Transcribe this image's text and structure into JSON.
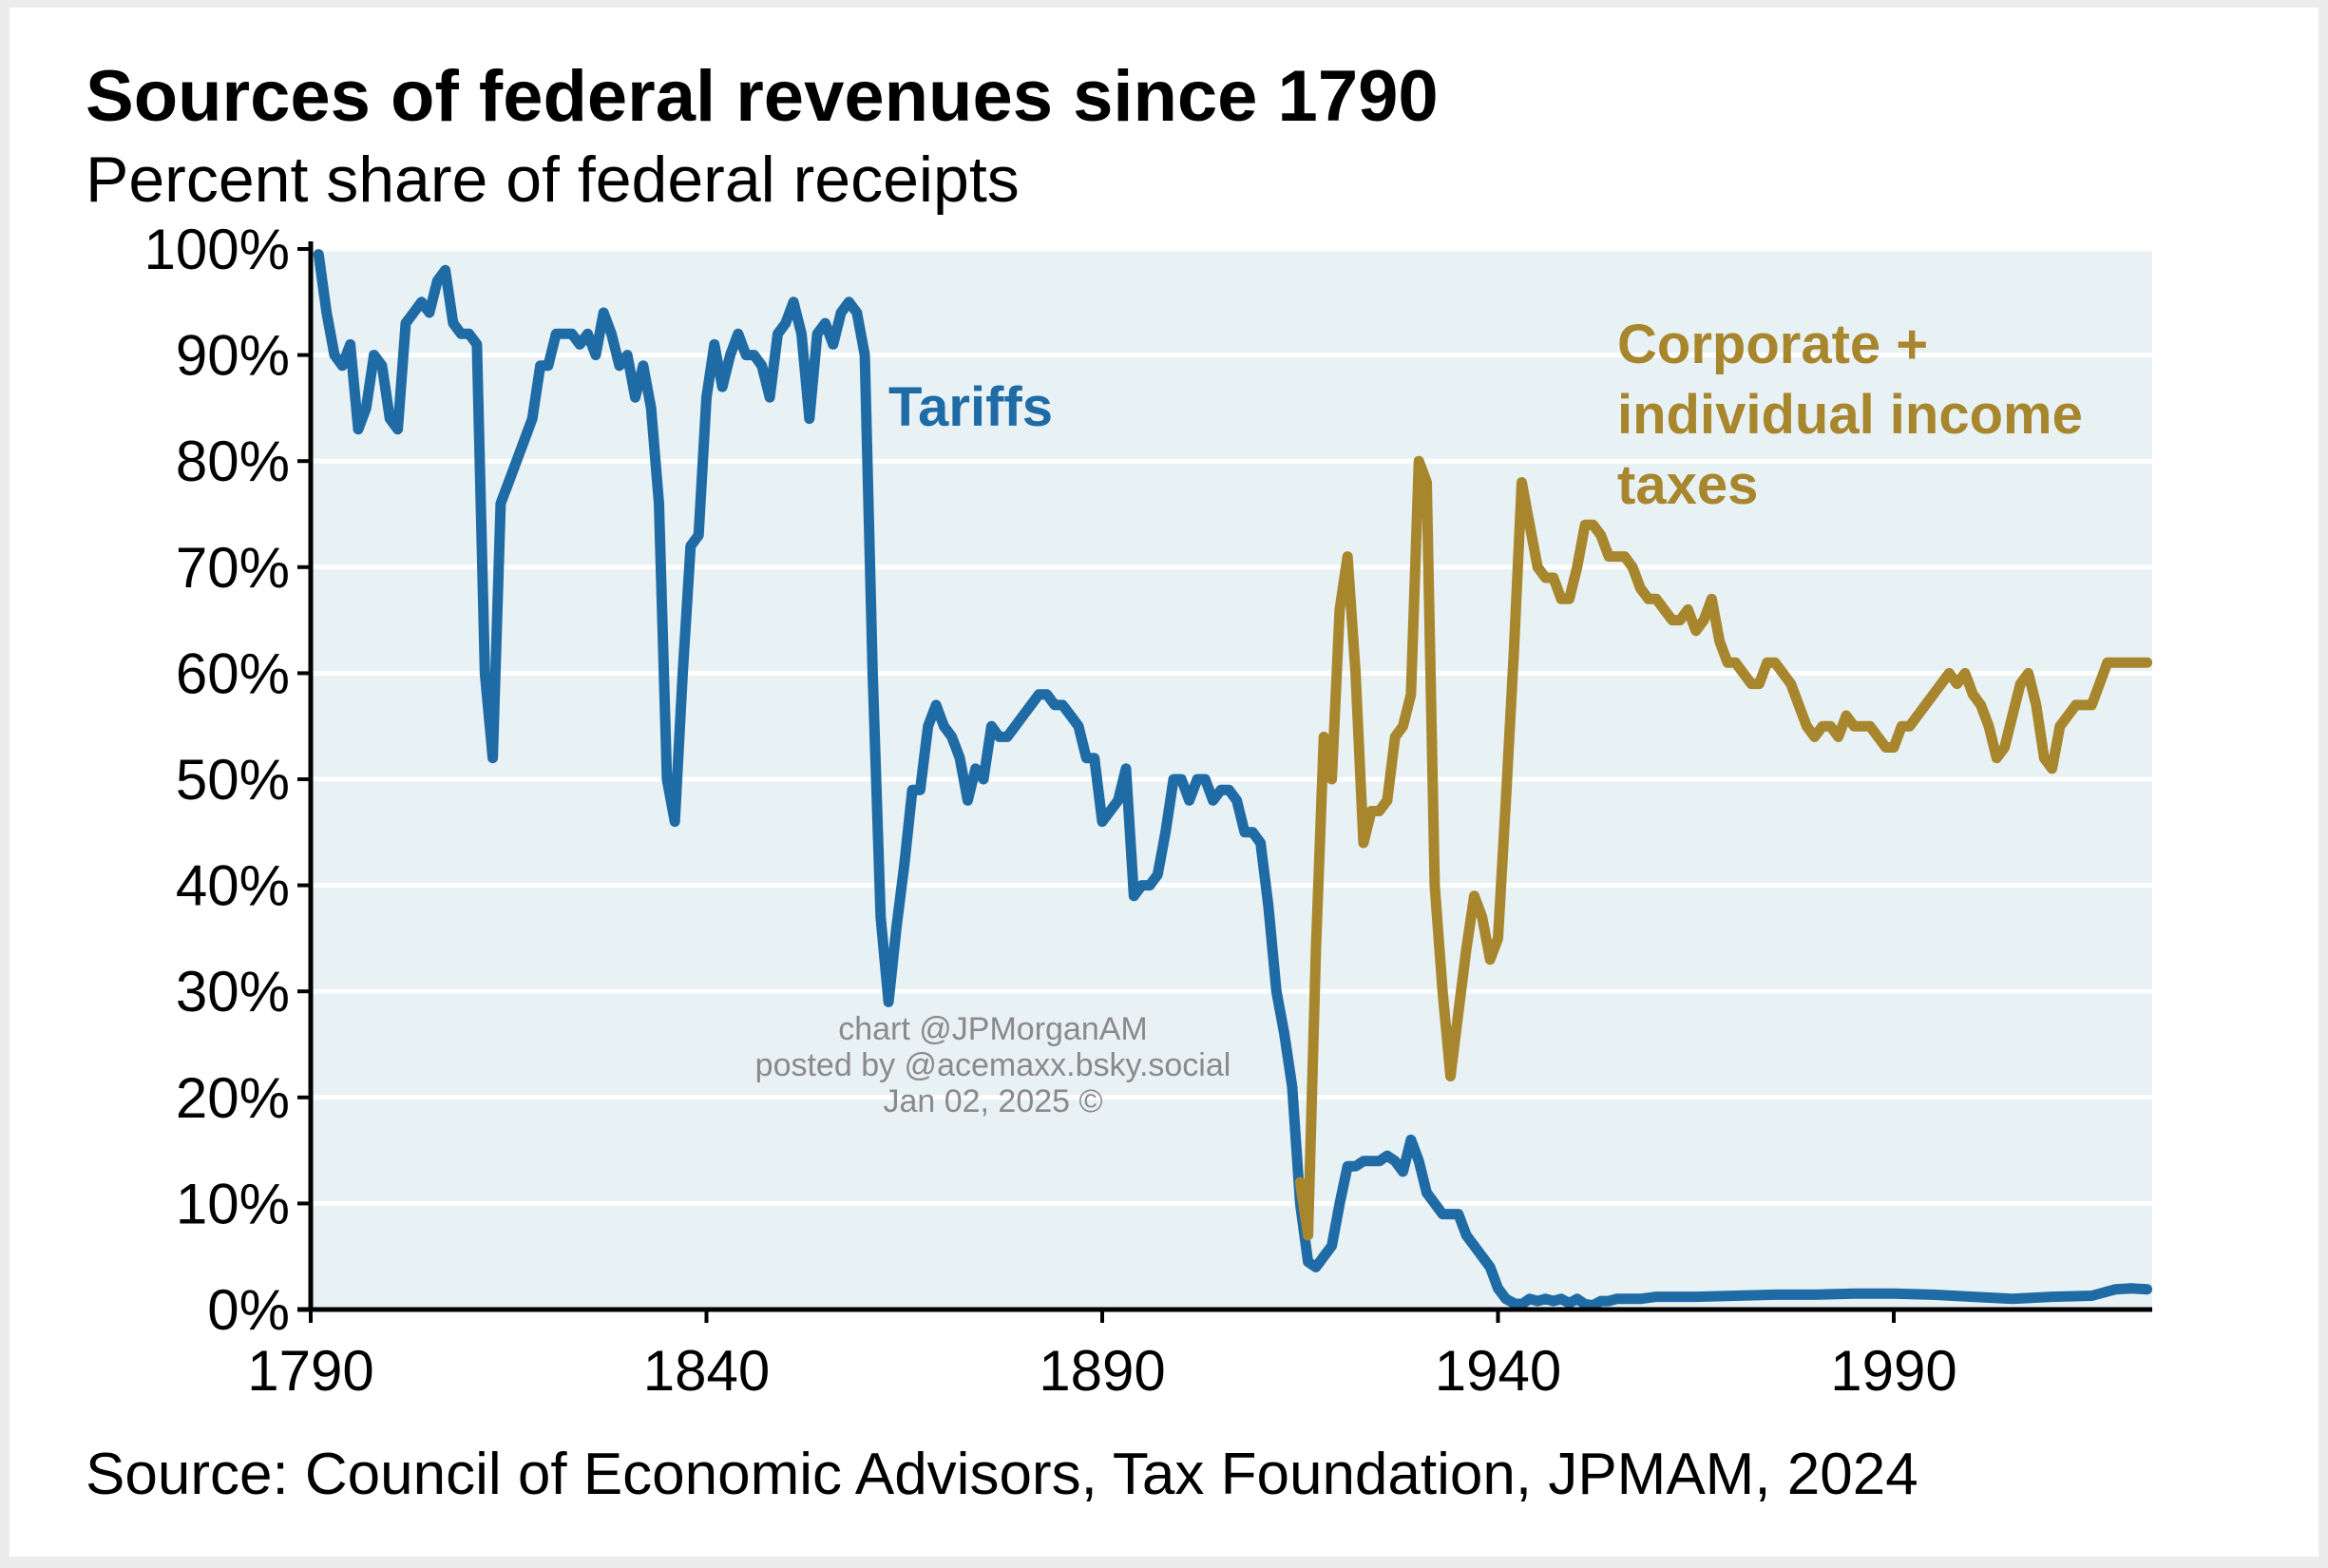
{
  "title": "Sources of federal revenues since 1790",
  "subtitle": "Percent share of federal receipts",
  "source": "Source: Council of Economic Advisors, Tax Foundation, JPMAM, 2024",
  "credit_lines": [
    "chart @JPMorganAM",
    "posted by @acemaxx.bsky.social",
    "Jan 02, 2025 ©"
  ],
  "colors": {
    "tariffs": "#1f6ba5",
    "income": "#a8862d",
    "plot_bg": "#e8f1f4",
    "grid": "#ffffff",
    "axis": "#000000"
  },
  "chart_data": {
    "type": "line",
    "title": "Sources of federal revenues since 1790",
    "subtitle": "Percent share of federal receipts",
    "xlabel": "",
    "ylabel": "",
    "xlim": [
      1790,
      2023
    ],
    "ylim": [
      0,
      100
    ],
    "x_ticks": [
      1790,
      1840,
      1890,
      1940,
      1990
    ],
    "x_tick_labels": [
      "1790",
      "1840",
      "1890",
      "1940",
      "1990"
    ],
    "y_ticks": [
      0,
      10,
      20,
      30,
      40,
      50,
      60,
      70,
      80,
      90,
      100
    ],
    "y_tick_labels": [
      "0%",
      "10%",
      "20%",
      "30%",
      "40%",
      "50%",
      "60%",
      "70%",
      "80%",
      "90%",
      "100%"
    ],
    "grid": "horizontal",
    "series": [
      {
        "name": "Tariffs",
        "color": "#1f6ba5",
        "points": [
          [
            1791,
            99.5
          ],
          [
            1792,
            94
          ],
          [
            1793,
            90
          ],
          [
            1794,
            89
          ],
          [
            1795,
            91
          ],
          [
            1796,
            83
          ],
          [
            1797,
            85
          ],
          [
            1798,
            90
          ],
          [
            1799,
            89
          ],
          [
            1800,
            84
          ],
          [
            1801,
            83
          ],
          [
            1802,
            93
          ],
          [
            1803,
            94
          ],
          [
            1804,
            95
          ],
          [
            1805,
            94
          ],
          [
            1806,
            97
          ],
          [
            1807,
            98
          ],
          [
            1808,
            93
          ],
          [
            1809,
            92
          ],
          [
            1810,
            92
          ],
          [
            1811,
            91
          ],
          [
            1812,
            60
          ],
          [
            1813,
            52
          ],
          [
            1814,
            76
          ],
          [
            1815,
            78
          ],
          [
            1816,
            80
          ],
          [
            1817,
            82
          ],
          [
            1818,
            84
          ],
          [
            1819,
            89
          ],
          [
            1820,
            89
          ],
          [
            1821,
            92
          ],
          [
            1822,
            92
          ],
          [
            1823,
            92
          ],
          [
            1824,
            91
          ],
          [
            1825,
            92
          ],
          [
            1826,
            90
          ],
          [
            1827,
            94
          ],
          [
            1828,
            92
          ],
          [
            1829,
            89
          ],
          [
            1830,
            90
          ],
          [
            1831,
            86
          ],
          [
            1832,
            89
          ],
          [
            1833,
            85
          ],
          [
            1834,
            76
          ],
          [
            1835,
            50
          ],
          [
            1836,
            46
          ],
          [
            1837,
            60
          ],
          [
            1838,
            72
          ],
          [
            1839,
            73
          ],
          [
            1840,
            86
          ],
          [
            1841,
            91
          ],
          [
            1842,
            87
          ],
          [
            1843,
            90
          ],
          [
            1844,
            92
          ],
          [
            1845,
            90
          ],
          [
            1846,
            90
          ],
          [
            1847,
            89
          ],
          [
            1848,
            86
          ],
          [
            1849,
            92
          ],
          [
            1850,
            93
          ],
          [
            1851,
            95
          ],
          [
            1852,
            92
          ],
          [
            1853,
            84
          ],
          [
            1854,
            92
          ],
          [
            1855,
            93
          ],
          [
            1856,
            91
          ],
          [
            1857,
            94
          ],
          [
            1858,
            95
          ],
          [
            1859,
            94
          ],
          [
            1860,
            90
          ],
          [
            1861,
            60
          ],
          [
            1862,
            37
          ],
          [
            1863,
            29
          ],
          [
            1864,
            36
          ],
          [
            1865,
            42
          ],
          [
            1866,
            49
          ],
          [
            1867,
            49
          ],
          [
            1868,
            55
          ],
          [
            1869,
            57
          ],
          [
            1870,
            55
          ],
          [
            1871,
            54
          ],
          [
            1872,
            52
          ],
          [
            1873,
            48
          ],
          [
            1874,
            51
          ],
          [
            1875,
            50
          ],
          [
            1876,
            55
          ],
          [
            1877,
            54
          ],
          [
            1878,
            54
          ],
          [
            1879,
            55
          ],
          [
            1880,
            56
          ],
          [
            1881,
            57
          ],
          [
            1882,
            58
          ],
          [
            1883,
            58
          ],
          [
            1884,
            57
          ],
          [
            1885,
            57
          ],
          [
            1886,
            56
          ],
          [
            1887,
            55
          ],
          [
            1888,
            52
          ],
          [
            1889,
            52
          ],
          [
            1890,
            46
          ],
          [
            1891,
            47
          ],
          [
            1892,
            48
          ],
          [
            1893,
            51
          ],
          [
            1894,
            39
          ],
          [
            1895,
            40
          ],
          [
            1896,
            40
          ],
          [
            1897,
            41
          ],
          [
            1898,
            45
          ],
          [
            1899,
            50
          ],
          [
            1900,
            50
          ],
          [
            1901,
            48
          ],
          [
            1902,
            50
          ],
          [
            1903,
            50
          ],
          [
            1904,
            48
          ],
          [
            1905,
            49
          ],
          [
            1906,
            49
          ],
          [
            1907,
            48
          ],
          [
            1908,
            45
          ],
          [
            1909,
            45
          ],
          [
            1910,
            44
          ],
          [
            1911,
            38
          ],
          [
            1912,
            30
          ],
          [
            1913,
            26
          ],
          [
            1914,
            21
          ],
          [
            1915,
            10
          ],
          [
            1916,
            4.5
          ],
          [
            1917,
            4
          ],
          [
            1918,
            5
          ],
          [
            1919,
            6
          ],
          [
            1920,
            10
          ],
          [
            1921,
            13.5
          ],
          [
            1922,
            13.5
          ],
          [
            1923,
            14
          ],
          [
            1924,
            14
          ],
          [
            1925,
            14
          ],
          [
            1926,
            14.5
          ],
          [
            1927,
            14
          ],
          [
            1928,
            13
          ],
          [
            1929,
            16
          ],
          [
            1930,
            14
          ],
          [
            1931,
            11
          ],
          [
            1932,
            10
          ],
          [
            1933,
            9
          ],
          [
            1934,
            9
          ],
          [
            1935,
            9
          ],
          [
            1936,
            7
          ],
          [
            1937,
            6
          ],
          [
            1938,
            5
          ],
          [
            1939,
            4
          ],
          [
            1940,
            2
          ],
          [
            1941,
            1
          ],
          [
            1942,
            0.6
          ],
          [
            1943,
            0.5
          ],
          [
            1944,
            1
          ],
          [
            1945,
            0.8
          ],
          [
            1946,
            1
          ],
          [
            1947,
            0.8
          ],
          [
            1948,
            1
          ],
          [
            1949,
            0.6
          ],
          [
            1950,
            1
          ],
          [
            1951,
            0.5
          ],
          [
            1952,
            0.4
          ],
          [
            1953,
            0.8
          ],
          [
            1954,
            0.8
          ],
          [
            1955,
            1
          ],
          [
            1956,
            1
          ],
          [
            1958,
            1
          ],
          [
            1960,
            1.2
          ],
          [
            1965,
            1.2
          ],
          [
            1970,
            1.3
          ],
          [
            1975,
            1.4
          ],
          [
            1980,
            1.4
          ],
          [
            1985,
            1.5
          ],
          [
            1990,
            1.5
          ],
          [
            1995,
            1.4
          ],
          [
            2000,
            1.2
          ],
          [
            2005,
            1
          ],
          [
            2010,
            1.2
          ],
          [
            2015,
            1.3
          ],
          [
            2018,
            1.9
          ],
          [
            2020,
            2
          ],
          [
            2022,
            1.9
          ]
        ]
      },
      {
        "name": "Corporate + individual income taxes",
        "color": "#a8862d",
        "points": [
          [
            1915,
            12
          ],
          [
            1916,
            7
          ],
          [
            1917,
            34
          ],
          [
            1918,
            54
          ],
          [
            1919,
            50
          ],
          [
            1920,
            66
          ],
          [
            1921,
            71
          ],
          [
            1922,
            60
          ],
          [
            1923,
            44
          ],
          [
            1924,
            47
          ],
          [
            1925,
            47
          ],
          [
            1926,
            48
          ],
          [
            1927,
            54
          ],
          [
            1928,
            55
          ],
          [
            1929,
            58
          ],
          [
            1930,
            80
          ],
          [
            1931,
            78
          ],
          [
            1932,
            40
          ],
          [
            1933,
            30
          ],
          [
            1934,
            22
          ],
          [
            1935,
            28
          ],
          [
            1936,
            34
          ],
          [
            1937,
            39
          ],
          [
            1938,
            37
          ],
          [
            1939,
            33
          ],
          [
            1940,
            35
          ],
          [
            1941,
            48
          ],
          [
            1942,
            62
          ],
          [
            1943,
            78
          ],
          [
            1944,
            74
          ],
          [
            1945,
            70
          ],
          [
            1946,
            69
          ],
          [
            1947,
            69
          ],
          [
            1948,
            67
          ],
          [
            1949,
            67
          ],
          [
            1950,
            70
          ],
          [
            1951,
            74
          ],
          [
            1952,
            74
          ],
          [
            1953,
            73
          ],
          [
            1954,
            71
          ],
          [
            1955,
            71
          ],
          [
            1956,
            71
          ],
          [
            1957,
            70
          ],
          [
            1958,
            68
          ],
          [
            1959,
            67
          ],
          [
            1960,
            67
          ],
          [
            1961,
            66
          ],
          [
            1962,
            65
          ],
          [
            1963,
            65
          ],
          [
            1964,
            66
          ],
          [
            1965,
            64
          ],
          [
            1966,
            65
          ],
          [
            1967,
            67
          ],
          [
            1968,
            63
          ],
          [
            1969,
            61
          ],
          [
            1970,
            61
          ],
          [
            1971,
            60
          ],
          [
            1972,
            59
          ],
          [
            1973,
            59
          ],
          [
            1974,
            61
          ],
          [
            1975,
            61
          ],
          [
            1976,
            60
          ],
          [
            1977,
            59
          ],
          [
            1978,
            57
          ],
          [
            1979,
            55
          ],
          [
            1980,
            54
          ],
          [
            1981,
            55
          ],
          [
            1982,
            55
          ],
          [
            1983,
            54
          ],
          [
            1984,
            56
          ],
          [
            1985,
            55
          ],
          [
            1986,
            55
          ],
          [
            1987,
            55
          ],
          [
            1988,
            54
          ],
          [
            1989,
            53
          ],
          [
            1990,
            53
          ],
          [
            1991,
            55
          ],
          [
            1992,
            55
          ],
          [
            1993,
            56
          ],
          [
            1994,
            57
          ],
          [
            1995,
            58
          ],
          [
            1996,
            59
          ],
          [
            1997,
            60
          ],
          [
            1998,
            59
          ],
          [
            1999,
            60
          ],
          [
            2000,
            58
          ],
          [
            2001,
            57
          ],
          [
            2002,
            55
          ],
          [
            2003,
            52
          ],
          [
            2004,
            53
          ],
          [
            2005,
            56
          ],
          [
            2006,
            59
          ],
          [
            2007,
            60
          ],
          [
            2008,
            57
          ],
          [
            2009,
            52
          ],
          [
            2010,
            51
          ],
          [
            2011,
            55
          ],
          [
            2012,
            56
          ],
          [
            2013,
            57
          ],
          [
            2014,
            57
          ],
          [
            2015,
            57
          ],
          [
            2016,
            59
          ],
          [
            2017,
            61
          ],
          [
            2018,
            61
          ],
          [
            2019,
            61
          ],
          [
            2020,
            61
          ],
          [
            2021,
            61
          ],
          [
            2022,
            61
          ]
        ]
      }
    ],
    "annotations": [
      {
        "text": "Tariffs",
        "series": "Tariffs"
      },
      {
        "text": [
          "Corporate +",
          "individual income",
          "taxes"
        ],
        "series": "Corporate + individual income taxes"
      }
    ]
  }
}
